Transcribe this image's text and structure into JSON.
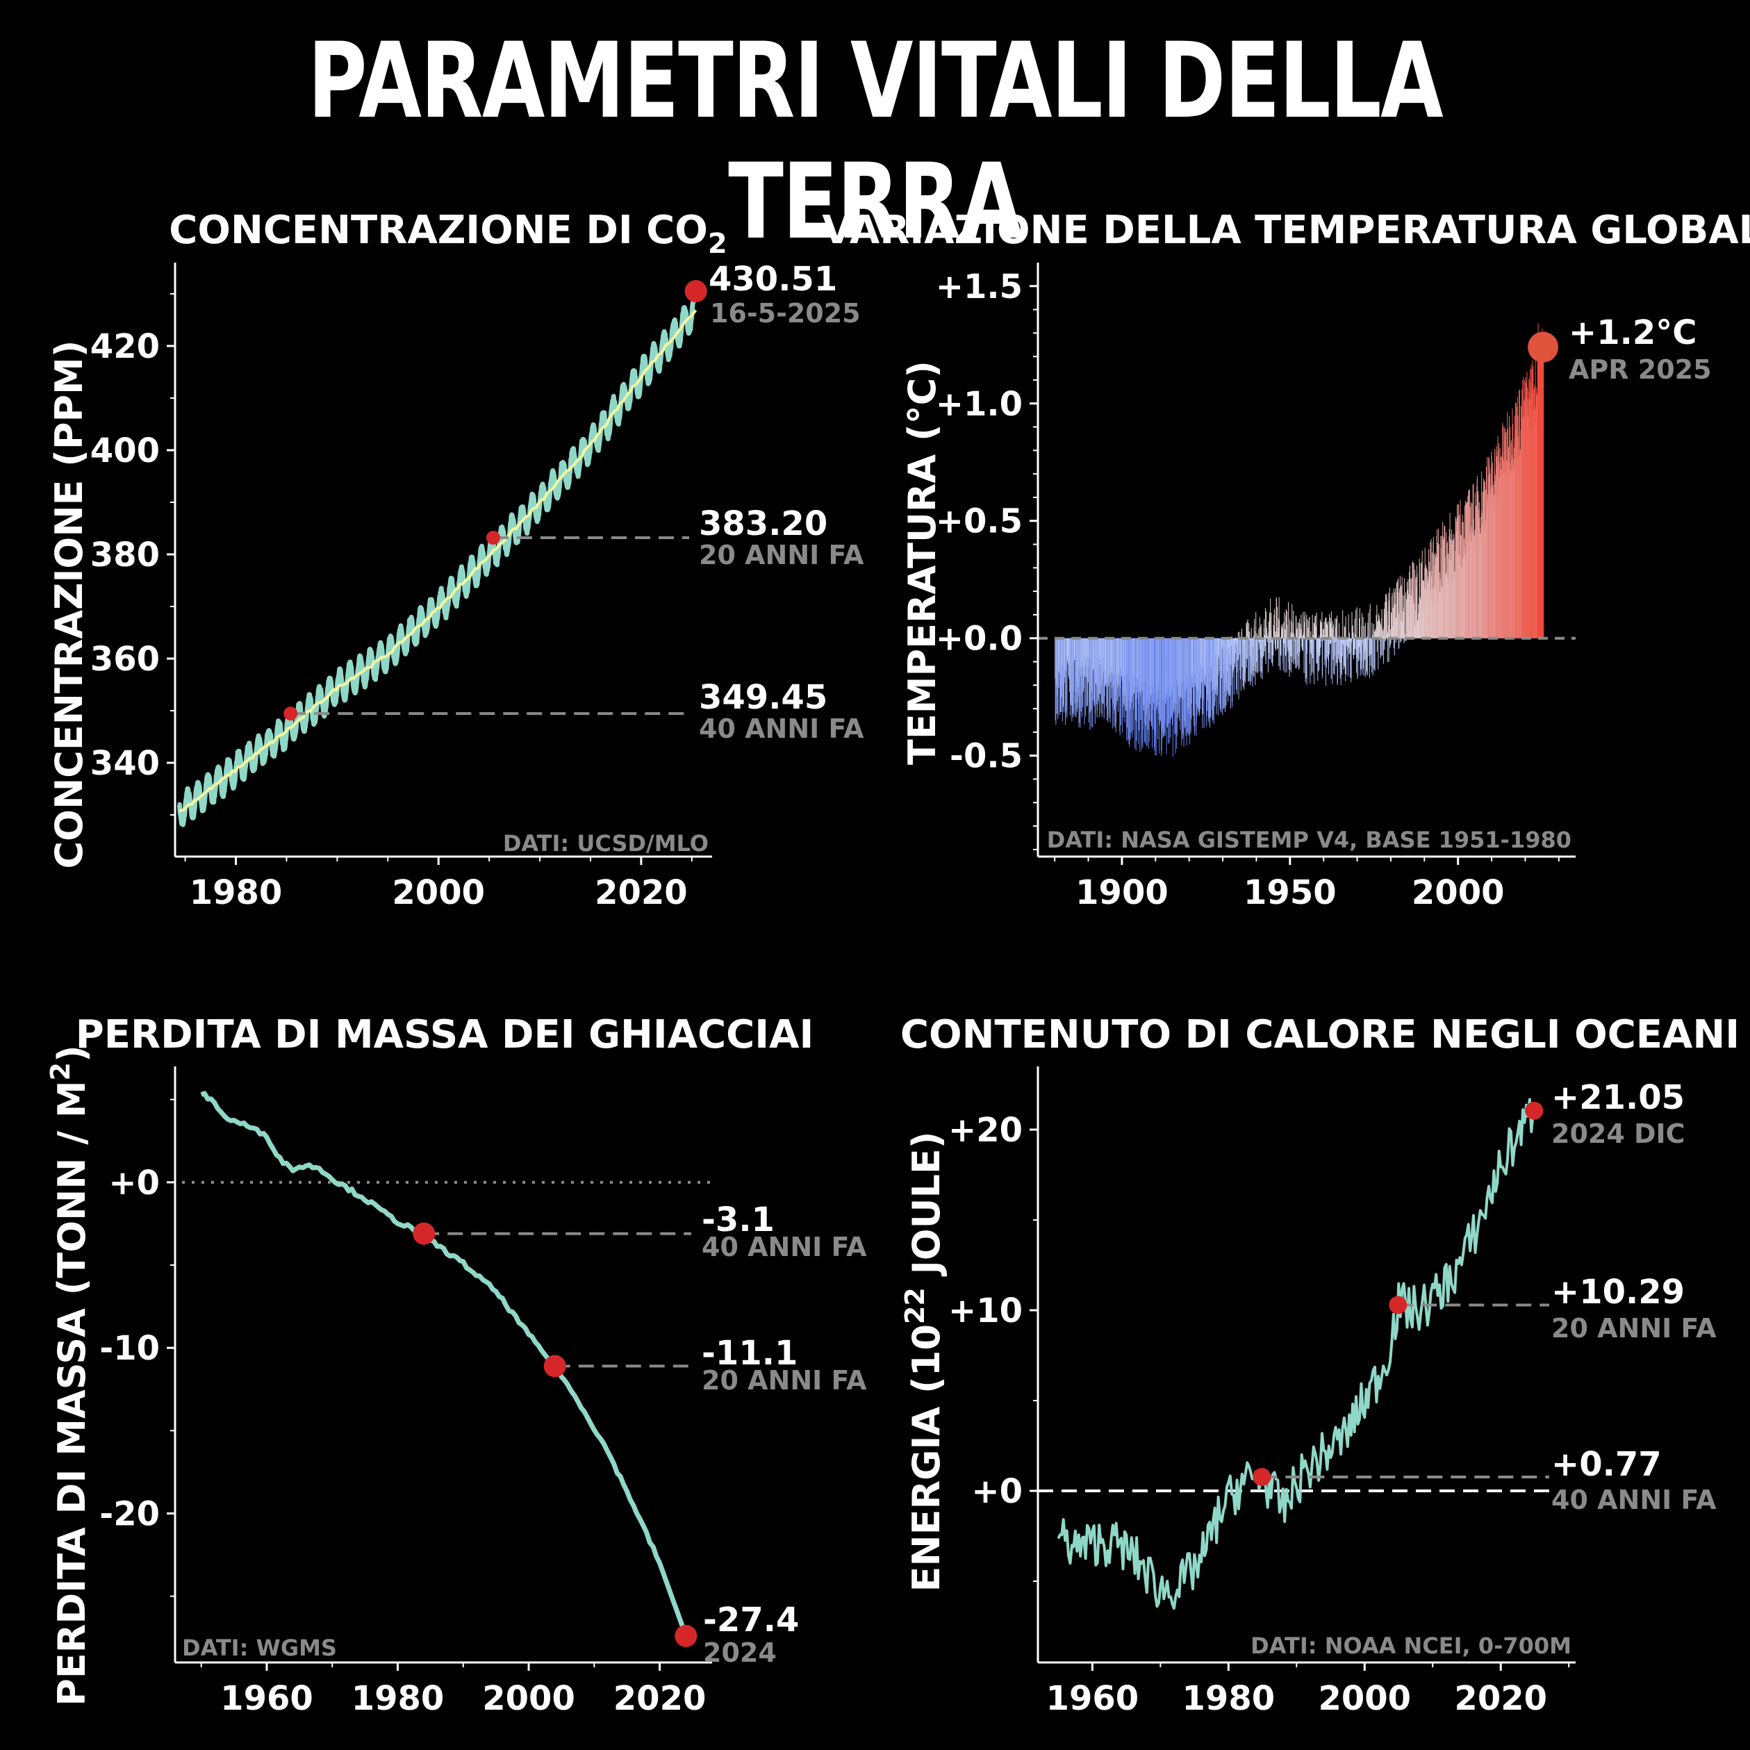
{
  "title": "PARAMETRI VITALI DELLA TERRA",
  "panels": {
    "co2": {
      "title": "CONCENTRAZIONE DI CO",
      "title_sub": "2",
      "ylabel": "CONCENTRAZIONE (PPM)",
      "source": "DATI: UCSD/MLO",
      "current_value": "430.51",
      "current_date": "16-5-2025",
      "ann1_value": "383.20",
      "ann1_label": "20 ANNI FA",
      "ann2_value": "349.45",
      "ann2_label": "40 ANNI FA"
    },
    "temp": {
      "title": "VARIAZIONE DELLA TEMPERATURA GLOBALE",
      "ylabel": "TEMPERATURA (°C)",
      "source": "DATI: NASA GISTEMP V4, BASE 1951-1980",
      "current_value": "+1.2°C",
      "current_date": "APR 2025"
    },
    "glacier": {
      "title": "PERDITA DI MASSA DEI GHIACCIAI",
      "ylabel": "PERDITA DI MASSA (TONN / M",
      "ylabel_sup": "2",
      "ylabel_end": ")",
      "source": "DATI: WGMS",
      "ann1_value": "-3.1",
      "ann1_label": "40 ANNI FA",
      "ann2_value": "-11.1",
      "ann2_label": "20 ANNI FA",
      "current_value": "-27.4",
      "current_date": "2024"
    },
    "ocean": {
      "title": "CONTENUTO DI CALORE NEGLI OCEANI",
      "ylabel": "ENERGIA (10",
      "ylabel_sup": "22",
      "ylabel_end": " JOULE)",
      "source": "DATI: NOAA NCEI, 0-700M",
      "current_value": "+21.05",
      "current_date": "2024 DIC",
      "ann1_value": "+10.29",
      "ann1_label": "20 ANNI FA",
      "ann2_value": "+0.77",
      "ann2_label": "40 ANNI FA"
    }
  },
  "colors": {
    "line": "#8fd8c8",
    "marker": "#d62728",
    "trend": "#f5f5a0",
    "warm": "#e0533c",
    "cool": "#5b7ff0"
  },
  "chart_data": [
    {
      "type": "line",
      "title": "CONCENTRAZIONE DI CO2",
      "ylabel": "CONCENTRAZIONE (PPM)",
      "xlim": [
        1974,
        2027
      ],
      "ylim": [
        322,
        436
      ],
      "xticks": [
        1980,
        2000,
        2020
      ],
      "yticks": [
        340,
        360,
        380,
        400,
        420
      ],
      "series": [
        {
          "x": [
            1974.4,
            1980,
            1985,
            1990,
            1995,
            2000,
            2005,
            2010,
            2015,
            2020,
            2025.4
          ],
          "values": [
            330.5,
            338.7,
            346.1,
            354.4,
            360.8,
            369.7,
            379.8,
            389.9,
            401.0,
            414.2,
            427.0
          ]
        }
      ],
      "markers": [
        {
          "x": 1985.4,
          "y": 349.45
        },
        {
          "x": 2005.4,
          "y": 383.2
        },
        {
          "x": 2025.4,
          "y": 430.51
        }
      ]
    },
    {
      "type": "bar",
      "title": "VARIAZIONE DELLA TEMPERATURA GLOBALE",
      "ylabel": "TEMPERATURA (°C)",
      "xlim": [
        1875,
        2035
      ],
      "ylim": [
        -0.93,
        1.6
      ],
      "xticks": [
        1900,
        1950,
        2000
      ],
      "yticks": [
        -0.5,
        0.0,
        0.5,
        1.0,
        1.5
      ],
      "ytick_labels": [
        "-0.5",
        "+0.0",
        "+0.5",
        "+1.0",
        "+1.5"
      ],
      "decade_means": {
        "x": [
          1885,
          1895,
          1905,
          1915,
          1925,
          1935,
          1945,
          1955,
          1965,
          1975,
          1985,
          1995,
          2005,
          2015,
          2022
        ],
        "values": [
          -0.22,
          -0.24,
          -0.33,
          -0.35,
          -0.24,
          -0.11,
          0.03,
          -0.05,
          -0.04,
          -0.01,
          0.15,
          0.33,
          0.52,
          0.82,
          1.05
        ]
      },
      "markers": [
        {
          "x": 2025.3,
          "y": 1.24
        }
      ]
    },
    {
      "type": "line",
      "title": "PERDITA DI MASSA DEI GHIACCIAI",
      "ylabel": "PERDITA DI MASSA (TONN / M2)",
      "xlim": [
        1946,
        2028
      ],
      "ylim": [
        -29,
        7
      ],
      "xticks": [
        1960,
        1980,
        2000,
        2020
      ],
      "yticks": [
        -20,
        -10,
        0
      ],
      "ytick_labels": [
        "-20",
        "-10",
        "+0"
      ],
      "series": [
        {
          "x": [
            1950,
            1952,
            1954,
            1956,
            1958,
            1960,
            1962,
            1964,
            1966,
            1968,
            1970,
            1975,
            1980,
            1984,
            1986,
            1990,
            1995,
            2000,
            2004,
            2008,
            2012,
            2016,
            2020,
            2024
          ],
          "values": [
            5.4,
            4.8,
            3.8,
            3.6,
            3.2,
            2.8,
            1.4,
            0.8,
            1.0,
            0.9,
            0.2,
            -1.0,
            -2.4,
            -3.1,
            -3.8,
            -4.9,
            -6.6,
            -9.2,
            -11.1,
            -13.5,
            -16.2,
            -19.5,
            -23.0,
            -27.4
          ]
        }
      ],
      "markers": [
        {
          "x": 1984,
          "y": -3.1
        },
        {
          "x": 2004,
          "y": -11.1
        },
        {
          "x": 2024,
          "y": -27.4
        }
      ]
    },
    {
      "type": "line",
      "title": "CONTENUTO DI CALORE NEGLI OCEANI",
      "ylabel": "ENERGIA (10^22 JOULE)",
      "xlim": [
        1952,
        2031
      ],
      "ylim": [
        -9.5,
        23.5
      ],
      "xticks": [
        1960,
        1980,
        2000,
        2020
      ],
      "yticks": [
        0,
        10,
        20
      ],
      "ytick_labels": [
        "+0",
        "+10",
        "+20"
      ],
      "series": [
        {
          "x": [
            1955,
            1958,
            1961,
            1964,
            1967,
            1970,
            1973,
            1976,
            1979,
            1982,
            1985,
            1988,
            1991,
            1994,
            1997,
            2000,
            2003,
            2005,
            2008,
            2011,
            2014,
            2017,
            2020,
            2023,
            2024.9
          ],
          "values": [
            -2.5,
            -3.2,
            -2.8,
            -3.0,
            -4.0,
            -5.5,
            -5.2,
            -3.8,
            -1.0,
            0.5,
            0.77,
            -1.0,
            1.0,
            2.0,
            3.0,
            5.0,
            7.0,
            10.29,
            10.0,
            11.0,
            12.5,
            15.0,
            18.0,
            20.0,
            21.05
          ]
        }
      ],
      "markers": [
        {
          "x": 1984.9,
          "y": 0.77
        },
        {
          "x": 2004.9,
          "y": 10.29
        },
        {
          "x": 2024.9,
          "y": 21.05
        }
      ]
    }
  ]
}
